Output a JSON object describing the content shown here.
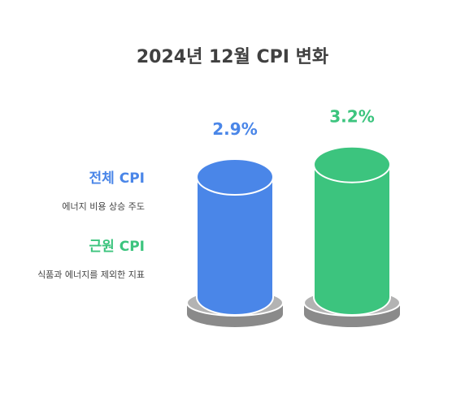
{
  "chart_data": {
    "type": "bar",
    "title": "2024년 12월 CPI 변화",
    "categories": [
      "전체 CPI",
      "근원 CPI"
    ],
    "values": [
      2.9,
      3.2
    ],
    "value_labels": [
      "2.9%",
      "3.2%"
    ],
    "colors": [
      "#4A86E8",
      "#3CC47E"
    ],
    "series": [
      {
        "label": "전체 CPI",
        "description": "에너지 비용 상승 주도",
        "color": "#4A86E8"
      },
      {
        "label": "근원 CPI",
        "description": "식품과 에너지를 제외한 지표",
        "color": "#3CC47E"
      }
    ],
    "ylim": [
      0,
      3.5
    ],
    "grid": false,
    "legend": "left"
  }
}
